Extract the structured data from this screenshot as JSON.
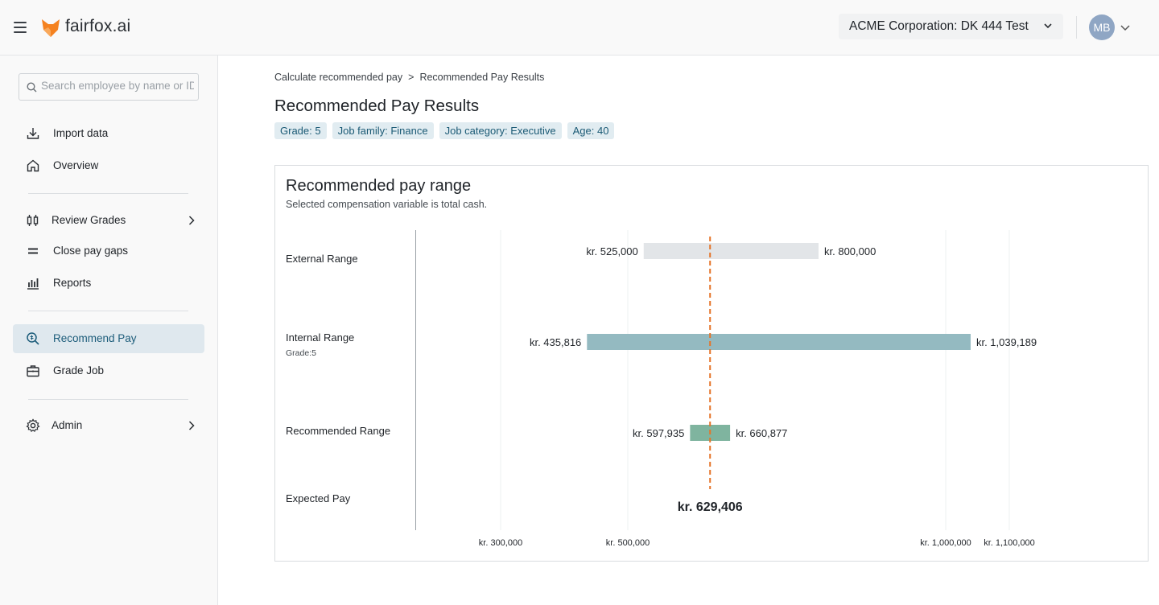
{
  "header": {
    "brand": "fairfox.ai",
    "company": "ACME Corporation: DK 444 Test",
    "avatar_initials": "MB",
    "accent_color": "#f58220"
  },
  "sidebar": {
    "search_placeholder": "Search employee by name or ID",
    "items": [
      {
        "label": "Import data",
        "icon": "download-icon"
      },
      {
        "label": "Overview",
        "icon": "home-icon"
      },
      {
        "label": "Review Grades",
        "icon": "grades-icon",
        "has_submenu": true
      },
      {
        "label": "Close pay gaps",
        "icon": "equals-icon"
      },
      {
        "label": "Reports",
        "icon": "bar-chart-icon"
      },
      {
        "label": "Recommend Pay",
        "icon": "search-money-icon",
        "active": true
      },
      {
        "label": "Grade Job",
        "icon": "briefcase-icon"
      },
      {
        "label": "Admin",
        "icon": "gear-icon",
        "has_submenu": true
      }
    ]
  },
  "breadcrumb": {
    "parent": "Calculate recommended pay",
    "separator": ">",
    "current": "Recommended Pay Results"
  },
  "page": {
    "title": "Recommended Pay Results",
    "tags": [
      "Grade: 5",
      "Job family: Finance",
      "Job category: Executive",
      "Age: 40"
    ]
  },
  "card": {
    "title": "Recommended pay range",
    "subtitle": "Selected compensation variable is total cash.",
    "rows": {
      "external": {
        "label": "External Range"
      },
      "internal": {
        "label": "Internal Range",
        "sub": "Grade:5"
      },
      "recommended": {
        "label": "Recommended Range"
      },
      "expected": {
        "label": "Expected Pay"
      }
    }
  },
  "chart_data": {
    "type": "range-bar",
    "currency_prefix": "kr.",
    "x_ticks": [
      {
        "value": 300000,
        "label": "300,000"
      },
      {
        "value": 500000,
        "label": "500,000"
      },
      {
        "value": 1000000,
        "label": "1,000,000"
      },
      {
        "value": 1100000,
        "label": "1,100,000"
      }
    ],
    "series": [
      {
        "name": "External Range",
        "min": 525000,
        "max": 800000,
        "min_label": "525,000",
        "max_label": "800,000",
        "color": "#e2e5e8"
      },
      {
        "name": "Internal Range",
        "min": 435816,
        "max": 1039189,
        "min_label": "435,816",
        "max_label": "1,039,189",
        "color": "#94bac1"
      },
      {
        "name": "Recommended Range",
        "min": 597935,
        "max": 660877,
        "min_label": "597,935",
        "max_label": "660,877",
        "color": "#7fb49f"
      }
    ],
    "expected_pay": {
      "value": 629406,
      "label": "629,406",
      "color": "#e5752a"
    },
    "grid": true
  }
}
